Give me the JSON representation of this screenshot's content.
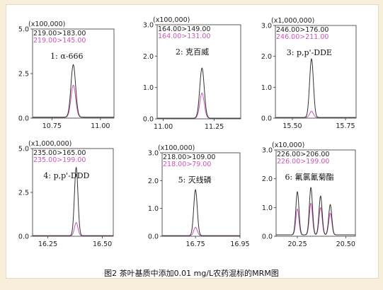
{
  "caption": "图2 茶叶基质中添加0.01 mg/L农药混标的MRM图",
  "colors": {
    "trace_primary": "#333333",
    "trace_secondary": "#cc55bb",
    "text": "#222222"
  },
  "chart_data": [
    {
      "type": "line",
      "scale_label": "(x100,000)",
      "compound_label": "1: α-666",
      "yticks": [
        "0.0",
        "2.5",
        "5.0"
      ],
      "ytick_values": [
        0,
        2.5,
        5.0
      ],
      "ylim": [
        0,
        5.0
      ],
      "xticks": [
        "10.75",
        "11.00"
      ],
      "xtick_values": [
        10.75,
        11.0
      ],
      "xlim": [
        10.65,
        11.07
      ],
      "series": [
        {
          "name": "219.00>183.00",
          "color": "#333333",
          "baseline": 0.05,
          "peaks": [
            {
              "x": 10.86,
              "height": 2.95,
              "width": 0.012
            }
          ]
        },
        {
          "name": "219.00>145.00",
          "color": "#cc55bb",
          "baseline": 0.05,
          "peaks": [
            {
              "x": 10.86,
              "height": 1.8,
              "width": 0.012
            }
          ]
        }
      ]
    },
    {
      "type": "line",
      "scale_label": "(x100,000)",
      "compound_label": "2: 克百威",
      "yticks": [
        "0.0",
        "1.0",
        "2.0",
        "3.0"
      ],
      "ytick_values": [
        0,
        1.0,
        2.0,
        3.0
      ],
      "ylim": [
        0,
        3.0
      ],
      "xticks": [
        "11.00",
        "11.25"
      ],
      "xtick_values": [
        11.0,
        11.25
      ],
      "xlim": [
        10.97,
        11.38
      ],
      "series": [
        {
          "name": "164.00>149.00",
          "color": "#333333",
          "baseline": 0.02,
          "peaks": [
            {
              "x": 11.19,
              "height": 1.6,
              "width": 0.011
            }
          ]
        },
        {
          "name": "164.00>131.00",
          "color": "#cc55bb",
          "baseline": 0.02,
          "peaks": [
            {
              "x": 11.19,
              "height": 0.8,
              "width": 0.011
            }
          ]
        }
      ]
    },
    {
      "type": "line",
      "scale_label": "(x1,000,000)",
      "compound_label": "3: p,p'-DDE",
      "yticks": [
        "0.0",
        "1.0",
        "2.0",
        "3.0"
      ],
      "ytick_values": [
        0,
        1.0,
        2.0,
        3.0
      ],
      "ylim": [
        0,
        3.0
      ],
      "xticks": [
        "15.50",
        "15.75"
      ],
      "xtick_values": [
        15.5,
        15.75
      ],
      "xlim": [
        15.42,
        15.8
      ],
      "series": [
        {
          "name": "246.00>176.00",
          "color": "#333333",
          "baseline": 0.02,
          "peaks": [
            {
              "x": 15.59,
              "height": 1.9,
              "width": 0.009
            }
          ]
        },
        {
          "name": "246.00>211.00",
          "color": "#cc55bb",
          "baseline": 0.02,
          "peaks": [
            {
              "x": 15.59,
              "height": 0.2,
              "width": 0.009
            }
          ]
        }
      ]
    },
    {
      "type": "line",
      "scale_label": "(x1,000,000)",
      "compound_label": "4: p,p'-DDD",
      "yticks": [
        "0.0",
        "2.5",
        "5.0"
      ],
      "ytick_values": [
        0,
        2.5,
        5.0
      ],
      "ylim": [
        0,
        5.0
      ],
      "xticks": [
        "16.25",
        "16.50"
      ],
      "xtick_values": [
        16.25,
        16.5
      ],
      "xlim": [
        16.18,
        16.55
      ],
      "series": [
        {
          "name": "235.00>165.00",
          "color": "#333333",
          "baseline": 0.03,
          "peaks": [
            {
              "x": 16.38,
              "height": 3.9,
              "width": 0.008
            }
          ]
        },
        {
          "name": "235.00>199.00",
          "color": "#cc55bb",
          "baseline": 0.03,
          "peaks": [
            {
              "x": 16.38,
              "height": 0.75,
              "width": 0.008
            }
          ]
        }
      ]
    },
    {
      "type": "line",
      "scale_label": "(x100,000)",
      "compound_label": "5: 灭线磷",
      "yticks": [
        "0.0",
        "1.0",
        "2.0",
        "3.0"
      ],
      "ytick_values": [
        0,
        1.0,
        2.0,
        3.0
      ],
      "ylim": [
        0,
        3.0
      ],
      "xticks": [
        "16.75",
        "16.95"
      ],
      "xtick_values": [
        16.75,
        16.95
      ],
      "xlim": [
        16.6,
        16.95
      ],
      "series": [
        {
          "name": "218.00>109.00",
          "color": "#333333",
          "baseline": 0.02,
          "peaks": [
            {
              "x": 16.75,
              "height": 1.65,
              "width": 0.008
            }
          ]
        },
        {
          "name": "218.00>79.00",
          "color": "#cc55bb",
          "baseline": 0.02,
          "peaks": [
            {
              "x": 16.75,
              "height": 0.3,
              "width": 0.008
            }
          ]
        }
      ]
    },
    {
      "type": "line",
      "scale_label": "(x10,000)",
      "compound_label": "6: 氟氯氰菊酯",
      "yticks": [
        "0.0",
        "1.0",
        "2.0",
        "3.0"
      ],
      "ytick_values": [
        0,
        1.0,
        2.0,
        3.0
      ],
      "ylim": [
        0,
        3.0
      ],
      "xticks": [
        "20.25",
        "20.50"
      ],
      "xtick_values": [
        20.25,
        20.5
      ],
      "xlim": [
        20.14,
        20.55
      ],
      "series": [
        {
          "name": "226.00>206.00",
          "color": "#333333",
          "baseline": 0.05,
          "peaks": [
            {
              "x": 20.25,
              "height": 1.5,
              "width": 0.008
            },
            {
              "x": 20.32,
              "height": 1.65,
              "width": 0.008
            },
            {
              "x": 20.37,
              "height": 1.35,
              "width": 0.008
            },
            {
              "x": 20.42,
              "height": 1.05,
              "width": 0.008
            }
          ]
        },
        {
          "name": "226.00>199.00",
          "color": "#cc55bb",
          "baseline": 0.05,
          "peaks": [
            {
              "x": 20.25,
              "height": 0.9,
              "width": 0.008
            },
            {
              "x": 20.32,
              "height": 1.1,
              "width": 0.008
            },
            {
              "x": 20.37,
              "height": 0.95,
              "width": 0.008
            },
            {
              "x": 20.42,
              "height": 0.75,
              "width": 0.008
            }
          ]
        }
      ]
    }
  ]
}
